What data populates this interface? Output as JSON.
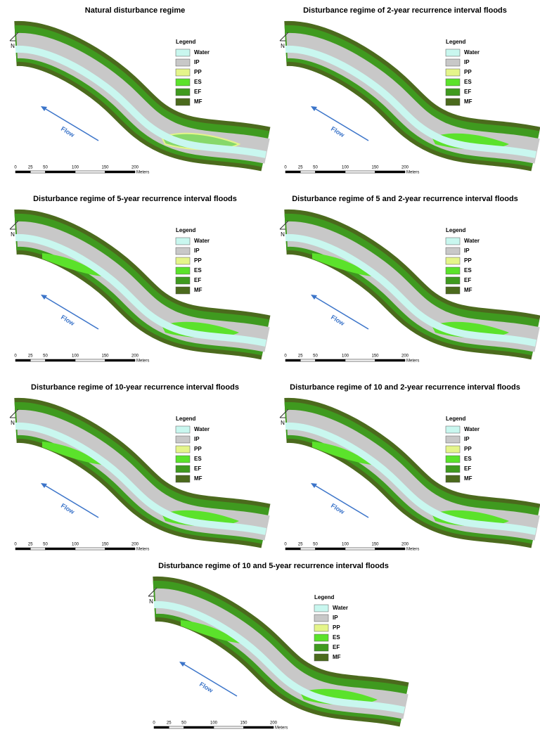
{
  "panels": [
    {
      "title": "Natural disturbance regime"
    },
    {
      "title": "Disturbance regime of 2-year recurrence interval floods"
    },
    {
      "title": "Disturbance regime of 5-year recurrence interval floods"
    },
    {
      "title": "Disturbance regime of 5 and 2-year recurrence interval floods"
    },
    {
      "title": "Disturbance regime of 10-year recurrence interval floods"
    },
    {
      "title": "Disturbance regime of 10 and 2-year recurrence interval floods"
    },
    {
      "title": "Disturbance regime of 10 and 5-year recurrence interval floods"
    }
  ],
  "legend": {
    "title": "Legend",
    "items": [
      {
        "label": "Water",
        "color": "#c9f7ef"
      },
      {
        "label": "IP",
        "color": "#c8c8c8"
      },
      {
        "label": "PP",
        "color": "#e4f58a"
      },
      {
        "label": "ES",
        "color": "#5be22b"
      },
      {
        "label": "EF",
        "color": "#3f9a1f"
      },
      {
        "label": "MF",
        "color": "#4b6a1d"
      }
    ]
  },
  "scale_bar": {
    "ticks": [
      0,
      25,
      50,
      100,
      150,
      200
    ],
    "unit": "Meters"
  },
  "flow_label": "Flow",
  "north_label": "N"
}
